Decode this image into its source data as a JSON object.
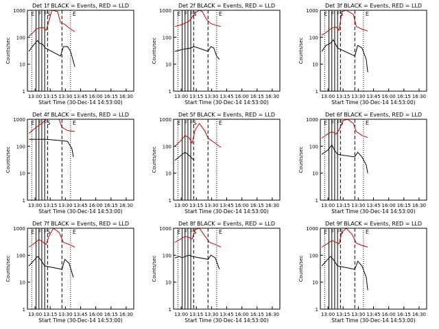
{
  "figure": {
    "background": "#ffffff",
    "colors": {
      "events": "#000000",
      "lld": "#cc0000",
      "axes": "#000000"
    }
  },
  "chart_data": [
    {
      "type": "line",
      "title": "Det 1f BLACK = Events, RED = LLD",
      "xlabel": "Start Time (30-Dec-14 14:53:00)",
      "ylabel": "Counts/sec",
      "y_scale": "log",
      "ylim": [
        1,
        1000
      ],
      "xlim": [
        12.9,
        16.6
      ],
      "x_tick_labels": [
        "13:00",
        "13:15",
        "13:30",
        "13:45",
        "16:00",
        "16:15",
        "16:30"
      ],
      "y_tick_labels": [
        "1",
        "10",
        "100",
        "1000"
      ],
      "flags": [
        "E",
        "F",
        "F",
        "S",
        "E"
      ],
      "series": [
        {
          "name": "Events",
          "values": [
            [
              12.95,
              30
            ],
            [
              13.1,
              50
            ],
            [
              13.25,
              75
            ],
            [
              13.32,
              60
            ],
            [
              13.43,
              55
            ],
            [
              13.52,
              40
            ],
            [
              14.05,
              20
            ],
            [
              14.15,
              45
            ],
            [
              14.3,
              45
            ],
            [
              14.4,
              30
            ],
            [
              14.55,
              8
            ]
          ]
        },
        {
          "name": "LLD",
          "values": [
            [
              12.95,
              110
            ],
            [
              13.1,
              150
            ],
            [
              13.2,
              200
            ],
            [
              13.3,
              220
            ],
            [
              13.45,
              230
            ],
            [
              13.55,
              180
            ],
            [
              13.65,
              400
            ],
            [
              13.75,
              1000
            ],
            [
              13.95,
              900
            ],
            [
              14.05,
              350
            ],
            [
              14.2,
              300
            ],
            [
              14.35,
              220
            ],
            [
              14.55,
              160
            ]
          ]
        }
      ]
    },
    {
      "type": "line",
      "title": "Det 2f BLACK = Events, RED = LLD",
      "xlabel": "Start Time (30-Dec-14 14:53:00)",
      "ylabel": "Counts/sec",
      "y_scale": "log",
      "ylim": [
        1,
        1000
      ],
      "xlim": [
        12.9,
        16.6
      ],
      "x_tick_labels": [
        "13:00",
        "13:15",
        "13:30",
        "13:45",
        "16:00",
        "16:15",
        "16:30"
      ],
      "y_tick_labels": [
        "1",
        "10",
        "100",
        "1000"
      ],
      "flags": [
        "E",
        "F",
        "F",
        "S",
        "E"
      ],
      "series": [
        {
          "name": "Events",
          "values": [
            [
              12.95,
              30
            ],
            [
              13.2,
              35
            ],
            [
              13.5,
              40
            ],
            [
              13.62,
              45
            ],
            [
              14.1,
              30
            ],
            [
              14.2,
              45
            ],
            [
              14.3,
              40
            ],
            [
              14.4,
              20
            ],
            [
              14.5,
              15
            ]
          ]
        },
        {
          "name": "LLD",
          "values": [
            [
              12.95,
              250
            ],
            [
              13.2,
              300
            ],
            [
              13.45,
              400
            ],
            [
              13.65,
              800
            ],
            [
              13.8,
              1000
            ],
            [
              13.9,
              900
            ],
            [
              14.05,
              450
            ],
            [
              14.2,
              320
            ],
            [
              14.35,
              280
            ],
            [
              14.55,
              250
            ]
          ]
        }
      ]
    },
    {
      "type": "line",
      "title": "Det 3f BLACK = Events, RED = LLD",
      "xlabel": "Start Time (30-Dec-14 14:53:00)",
      "ylabel": "Counts/sec",
      "y_scale": "log",
      "ylim": [
        1,
        1000
      ],
      "xlim": [
        12.9,
        16.6
      ],
      "x_tick_labels": [
        "13:00",
        "13:15",
        "13:30",
        "13:45",
        "16:00",
        "16:15",
        "16:30"
      ],
      "y_tick_labels": [
        "1",
        "10",
        "100",
        "1000"
      ],
      "flags": [
        "E",
        "F",
        "F",
        "S",
        "E"
      ],
      "series": [
        {
          "name": "Events",
          "values": [
            [
              12.95,
              30
            ],
            [
              13.1,
              50
            ],
            [
              13.25,
              60
            ],
            [
              13.35,
              80
            ],
            [
              13.5,
              40
            ],
            [
              14.1,
              20
            ],
            [
              14.2,
              50
            ],
            [
              14.35,
              40
            ],
            [
              14.5,
              15
            ],
            [
              14.55,
              5
            ]
          ]
        },
        {
          "name": "LLD",
          "values": [
            [
              12.95,
              120
            ],
            [
              13.1,
              150
            ],
            [
              13.3,
              220
            ],
            [
              13.45,
              240
            ],
            [
              13.55,
              180
            ],
            [
              13.65,
              900
            ],
            [
              13.8,
              1000
            ],
            [
              14.05,
              700
            ],
            [
              14.15,
              250
            ],
            [
              14.35,
              200
            ],
            [
              14.55,
              170
            ]
          ]
        }
      ]
    },
    {
      "type": "line",
      "title": "Det 4f BLACK = Events, RED = LLD",
      "xlabel": "Start Time (30-Dec-14 14:53:00)",
      "ylabel": "Counts/sec",
      "y_scale": "log",
      "ylim": [
        1,
        1000
      ],
      "xlim": [
        12.9,
        16.6
      ],
      "x_tick_labels": [
        "13:00",
        "13:15",
        "13:30",
        "13:45",
        "16:00",
        "16:15",
        "16:30"
      ],
      "y_tick_labels": [
        "1",
        "10",
        "100",
        "1000"
      ],
      "flags": [
        "E",
        "F",
        "F",
        "S",
        "E"
      ],
      "series": [
        {
          "name": "Events",
          "values": [
            [
              12.95,
              180
            ],
            [
              13.2,
              180
            ],
            [
              13.4,
              180
            ],
            [
              13.55,
              180
            ],
            [
              14.1,
              160
            ],
            [
              14.3,
              150
            ],
            [
              14.45,
              80
            ],
            [
              14.5,
              40
            ]
          ]
        },
        {
          "name": "LLD",
          "values": [
            [
              12.95,
              300
            ],
            [
              13.2,
              500
            ],
            [
              13.4,
              700
            ],
            [
              13.55,
              1000
            ],
            [
              13.7,
              1000
            ],
            [
              14.0,
              1000
            ],
            [
              14.1,
              500
            ],
            [
              14.3,
              380
            ],
            [
              14.55,
              350
            ]
          ]
        }
      ]
    },
    {
      "type": "line",
      "title": "Det 5f BLACK = Events, RED = LLD",
      "xlabel": "Start Time (30-Dec-14 14:53:00)",
      "ylabel": "Counts/sec",
      "y_scale": "log",
      "ylim": [
        1,
        1000
      ],
      "xlim": [
        12.9,
        16.6
      ],
      "x_tick_labels": [
        "13:00",
        "13:15",
        "13:30",
        "13:45",
        "16:00",
        "16:15",
        "16:30"
      ],
      "y_tick_labels": [
        "1",
        "10",
        "100",
        "1000"
      ],
      "flags": [
        "E",
        "F",
        "F",
        "S",
        "E"
      ],
      "series": [
        {
          "name": "Events",
          "values": [
            [
              12.95,
              30
            ],
            [
              13.15,
              45
            ],
            [
              13.3,
              60
            ],
            [
              13.45,
              45
            ],
            [
              13.55,
              35
            ],
            [
              13.62,
              30
            ]
          ]
        },
        {
          "name": "LLD",
          "values": [
            [
              12.95,
              100
            ],
            [
              13.15,
              160
            ],
            [
              13.3,
              250
            ],
            [
              13.45,
              200
            ],
            [
              13.55,
              130
            ],
            [
              13.65,
              400
            ],
            [
              13.8,
              700
            ],
            [
              14.0,
              350
            ],
            [
              14.1,
              200
            ],
            [
              14.35,
              130
            ],
            [
              14.55,
              90
            ]
          ]
        }
      ]
    },
    {
      "type": "line",
      "title": "Det 6f BLACK = Events, RED = LLD",
      "xlabel": "Start Time (30-Dec-14 14:53:00)",
      "ylabel": "Counts/sec",
      "y_scale": "log",
      "ylim": [
        1,
        1000
      ],
      "xlim": [
        12.9,
        16.6
      ],
      "x_tick_labels": [
        "13:00",
        "13:15",
        "13:30",
        "13:45",
        "16:00",
        "16:15",
        "16:30"
      ],
      "y_tick_labels": [
        "1",
        "10",
        "100",
        "1000"
      ],
      "flags": [
        "E",
        "F",
        "F",
        "S",
        "E"
      ],
      "series": [
        {
          "name": "Events",
          "values": [
            [
              12.95,
              50
            ],
            [
              13.15,
              70
            ],
            [
              13.3,
              110
            ],
            [
              13.4,
              70
            ],
            [
              13.5,
              50
            ],
            [
              14.1,
              40
            ],
            [
              14.2,
              60
            ],
            [
              14.35,
              40
            ],
            [
              14.5,
              20
            ],
            [
              14.55,
              10
            ]
          ]
        },
        {
          "name": "LLD",
          "values": [
            [
              12.95,
              200
            ],
            [
              13.15,
              280
            ],
            [
              13.3,
              350
            ],
            [
              13.45,
              280
            ],
            [
              13.55,
              400
            ],
            [
              13.7,
              900
            ],
            [
              13.85,
              1000
            ],
            [
              14.05,
              700
            ],
            [
              14.15,
              350
            ],
            [
              14.35,
              250
            ],
            [
              14.55,
              210
            ]
          ]
        }
      ]
    },
    {
      "type": "line",
      "title": "Det 7f BLACK = Events, RED = LLD",
      "xlabel": "Start Time (30-Dec-14 14:53:00)",
      "ylabel": "Counts/sec",
      "y_scale": "log",
      "ylim": [
        1,
        1000
      ],
      "xlim": [
        12.9,
        16.6
      ],
      "x_tick_labels": [
        "13:00",
        "13:15",
        "13:30",
        "13:45",
        "16:00",
        "16:15",
        "16:30"
      ],
      "y_tick_labels": [
        "1",
        "10",
        "100",
        "1000"
      ],
      "flags": [
        "E",
        "F",
        "F",
        "S",
        "E"
      ],
      "series": [
        {
          "name": "Events",
          "values": [
            [
              12.95,
              40
            ],
            [
              13.1,
              60
            ],
            [
              13.25,
              90
            ],
            [
              13.35,
              70
            ],
            [
              13.5,
              40
            ],
            [
              14.1,
              30
            ],
            [
              14.2,
              70
            ],
            [
              14.35,
              50
            ],
            [
              14.5,
              15
            ]
          ]
        },
        {
          "name": "LLD",
          "values": [
            [
              12.95,
              200
            ],
            [
              13.15,
              280
            ],
            [
              13.3,
              380
            ],
            [
              13.45,
              300
            ],
            [
              13.55,
              250
            ],
            [
              13.65,
              500
            ],
            [
              13.8,
              1000
            ],
            [
              14.0,
              700
            ],
            [
              14.15,
              300
            ],
            [
              14.35,
              250
            ],
            [
              14.55,
              200
            ]
          ]
        }
      ]
    },
    {
      "type": "line",
      "title": "Det 8f BLACK = Events, RED = LLD",
      "xlabel": "Start Time (30-Dec-14 14:53:00)",
      "ylabel": "Counts/sec",
      "y_scale": "log",
      "ylim": [
        1,
        1000
      ],
      "xlim": [
        12.9,
        16.6
      ],
      "x_tick_labels": [
        "13:00",
        "13:15",
        "13:30",
        "13:45",
        "16:00",
        "16:15",
        "16:30"
      ],
      "y_tick_labels": [
        "1",
        "10",
        "100",
        "1000"
      ],
      "flags": [
        "E",
        "F",
        "F",
        "S",
        "E"
      ],
      "series": [
        {
          "name": "Events",
          "values": [
            [
              12.95,
              80
            ],
            [
              13.1,
              90
            ],
            [
              13.2,
              80
            ],
            [
              13.3,
              90
            ],
            [
              13.45,
              100
            ],
            [
              13.55,
              90
            ],
            [
              14.1,
              70
            ],
            [
              14.2,
              100
            ],
            [
              14.35,
              80
            ],
            [
              14.5,
              30
            ]
          ]
        },
        {
          "name": "LLD",
          "values": [
            [
              12.95,
              300
            ],
            [
              13.15,
              400
            ],
            [
              13.3,
              500
            ],
            [
              13.45,
              450
            ],
            [
              13.55,
              400
            ],
            [
              13.65,
              900
            ],
            [
              13.8,
              1000
            ],
            [
              14.0,
              500
            ],
            [
              14.15,
              300
            ],
            [
              14.35,
              250
            ],
            [
              14.55,
              200
            ]
          ]
        }
      ]
    },
    {
      "type": "line",
      "title": "Det 9f BLACK = Events, RED = LLD",
      "xlabel": "Start Time (30-Dec-14 14:53:00)",
      "ylabel": "Counts/sec",
      "y_scale": "log",
      "ylim": [
        1,
        1000
      ],
      "xlim": [
        12.9,
        16.6
      ],
      "x_tick_labels": [
        "13:00",
        "13:15",
        "13:30",
        "13:45",
        "16:00",
        "16:15",
        "16:30"
      ],
      "y_tick_labels": [
        "1",
        "10",
        "100",
        "1000"
      ],
      "flags": [
        "E",
        "F",
        "F",
        "S",
        "E"
      ],
      "series": [
        {
          "name": "Events",
          "values": [
            [
              12.95,
              40
            ],
            [
              13.1,
              60
            ],
            [
              13.25,
              90
            ],
            [
              13.35,
              70
            ],
            [
              13.5,
              40
            ],
            [
              14.1,
              30
            ],
            [
              14.2,
              60
            ],
            [
              14.35,
              40
            ],
            [
              14.5,
              15
            ],
            [
              14.55,
              5
            ]
          ]
        },
        {
          "name": "LLD",
          "values": [
            [
              12.95,
              200
            ],
            [
              13.15,
              270
            ],
            [
              13.3,
              350
            ],
            [
              13.45,
              300
            ],
            [
              13.55,
              260
            ],
            [
              13.65,
              700
            ],
            [
              13.8,
              1000
            ],
            [
              14.0,
              600
            ],
            [
              14.15,
              280
            ],
            [
              14.35,
              230
            ],
            [
              14.55,
              200
            ]
          ]
        }
      ]
    }
  ]
}
